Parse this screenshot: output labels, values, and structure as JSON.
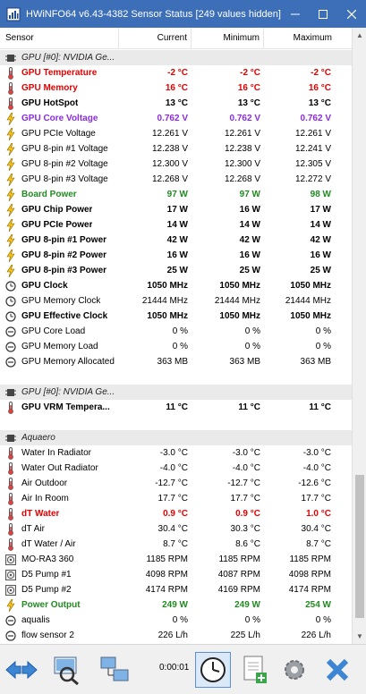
{
  "window": {
    "title": "HWiNFO64 v6.43-4382 Sensor Status [249 values hidden]"
  },
  "columns": {
    "sensor": "Sensor",
    "current": "Current",
    "minimum": "Minimum",
    "maximum": "Maximum"
  },
  "groups": [
    {
      "title": "GPU [#0]: NVIDIA Ge...",
      "rows": [
        {
          "name": "GPU Temperature",
          "cur": "-2 °C",
          "min": "-2 °C",
          "max": "-2 °C",
          "icon": "thermometer-icon",
          "style": "red"
        },
        {
          "name": "GPU Memory",
          "cur": "16 °C",
          "min": "16 °C",
          "max": "16 °C",
          "icon": "thermometer-icon",
          "style": "red"
        },
        {
          "name": "GPU HotSpot",
          "cur": "13 °C",
          "min": "13 °C",
          "max": "13 °C",
          "icon": "thermometer-icon",
          "style": "bold"
        },
        {
          "name": "GPU Core Voltage",
          "cur": "0.762 V",
          "min": "0.762 V",
          "max": "0.762 V",
          "icon": "lightning-icon",
          "style": "purple"
        },
        {
          "name": "GPU PCIe Voltage",
          "cur": "12.261 V",
          "min": "12.261 V",
          "max": "12.261 V",
          "icon": "lightning-icon",
          "style": ""
        },
        {
          "name": "GPU 8-pin #1 Voltage",
          "cur": "12.238 V",
          "min": "12.238 V",
          "max": "12.241 V",
          "icon": "lightning-icon",
          "style": ""
        },
        {
          "name": "GPU 8-pin #2 Voltage",
          "cur": "12.300 V",
          "min": "12.300 V",
          "max": "12.305 V",
          "icon": "lightning-icon",
          "style": ""
        },
        {
          "name": "GPU 8-pin #3 Voltage",
          "cur": "12.268 V",
          "min": "12.268 V",
          "max": "12.272 V",
          "icon": "lightning-icon",
          "style": ""
        },
        {
          "name": "Board Power",
          "cur": "97 W",
          "min": "97 W",
          "max": "98 W",
          "icon": "lightning-icon",
          "style": "green"
        },
        {
          "name": "GPU Chip Power",
          "cur": "17 W",
          "min": "16 W",
          "max": "17 W",
          "icon": "lightning-icon",
          "style": "bold"
        },
        {
          "name": "GPU PCIe Power",
          "cur": "14 W",
          "min": "14 W",
          "max": "14 W",
          "icon": "lightning-icon",
          "style": "bold"
        },
        {
          "name": "GPU 8-pin #1 Power",
          "cur": "42 W",
          "min": "42 W",
          "max": "42 W",
          "icon": "lightning-icon",
          "style": "bold"
        },
        {
          "name": "GPU 8-pin #2 Power",
          "cur": "16 W",
          "min": "16 W",
          "max": "16 W",
          "icon": "lightning-icon",
          "style": "bold"
        },
        {
          "name": "GPU 8-pin #3 Power",
          "cur": "25 W",
          "min": "25 W",
          "max": "25 W",
          "icon": "lightning-icon",
          "style": "bold"
        },
        {
          "name": "GPU Clock",
          "cur": "1050 MHz",
          "min": "1050 MHz",
          "max": "1050 MHz",
          "icon": "clock-icon",
          "style": "bold"
        },
        {
          "name": "GPU Memory Clock",
          "cur": "21444 MHz",
          "min": "21444 MHz",
          "max": "21444 MHz",
          "icon": "clock-icon",
          "style": ""
        },
        {
          "name": "GPU Effective Clock",
          "cur": "1050 MHz",
          "min": "1050 MHz",
          "max": "1050 MHz",
          "icon": "clock-icon",
          "style": "bold"
        },
        {
          "name": "GPU Core Load",
          "cur": "0 %",
          "min": "0 %",
          "max": "0 %",
          "icon": "gauge-icon",
          "style": ""
        },
        {
          "name": "GPU Memory Load",
          "cur": "0 %",
          "min": "0 %",
          "max": "0 %",
          "icon": "gauge-icon",
          "style": ""
        },
        {
          "name": "GPU Memory Allocated",
          "cur": "363 MB",
          "min": "363 MB",
          "max": "363 MB",
          "icon": "gauge-icon",
          "style": ""
        }
      ]
    },
    {
      "title": "GPU [#0]: NVIDIA Ge...",
      "rows": [
        {
          "name": "GPU VRM Tempera...",
          "cur": "11 °C",
          "min": "11 °C",
          "max": "11 °C",
          "icon": "thermometer-icon",
          "style": "bold"
        }
      ]
    },
    {
      "title": "Aquaero",
      "rows": [
        {
          "name": "Water In Radiator",
          "cur": "-3.0 °C",
          "min": "-3.0 °C",
          "max": "-3.0 °C",
          "icon": "thermometer-icon",
          "style": ""
        },
        {
          "name": "Water Out Radiator",
          "cur": "-4.0 °C",
          "min": "-4.0 °C",
          "max": "-4.0 °C",
          "icon": "thermometer-icon",
          "style": ""
        },
        {
          "name": "Air Outdoor",
          "cur": "-12.7 °C",
          "min": "-12.7 °C",
          "max": "-12.6 °C",
          "icon": "thermometer-icon",
          "style": ""
        },
        {
          "name": "Air In Room",
          "cur": "17.7 °C",
          "min": "17.7 °C",
          "max": "17.7 °C",
          "icon": "thermometer-icon",
          "style": ""
        },
        {
          "name": "dT Water",
          "cur": "0.9 °C",
          "min": "0.9 °C",
          "max": "1.0 °C",
          "icon": "thermometer-icon",
          "style": "red"
        },
        {
          "name": "dT Air",
          "cur": "30.4 °C",
          "min": "30.3 °C",
          "max": "30.4 °C",
          "icon": "thermometer-icon",
          "style": ""
        },
        {
          "name": "dT Water / Air",
          "cur": "8.7 °C",
          "min": "8.6 °C",
          "max": "8.7 °C",
          "icon": "thermometer-icon",
          "style": ""
        },
        {
          "name": "MO-RA3 360",
          "cur": "1185 RPM",
          "min": "1185 RPM",
          "max": "1185 RPM",
          "icon": "fan-icon",
          "style": ""
        },
        {
          "name": "D5 Pump #1",
          "cur": "4098 RPM",
          "min": "4087 RPM",
          "max": "4098 RPM",
          "icon": "fan-icon",
          "style": ""
        },
        {
          "name": "D5 Pump #2",
          "cur": "4174 RPM",
          "min": "4169 RPM",
          "max": "4174 RPM",
          "icon": "fan-icon",
          "style": ""
        },
        {
          "name": "Power Output",
          "cur": "249 W",
          "min": "249 W",
          "max": "254 W",
          "icon": "lightning-icon",
          "style": "green"
        },
        {
          "name": "aqualis",
          "cur": "0 %",
          "min": "0 %",
          "max": "0 %",
          "icon": "gauge-icon",
          "style": ""
        },
        {
          "name": "flow sensor 2",
          "cur": "226 L/h",
          "min": "225 L/h",
          "max": "226 L/h",
          "icon": "gauge-icon",
          "style": ""
        }
      ]
    }
  ],
  "toolbar": {
    "elapsed_time": "0:00:01",
    "buttons": [
      "navigate-arrows-icon",
      "network-view-icon",
      "network-icon",
      "clock-icon",
      "log-add-icon",
      "settings-gear-icon",
      "close-x-icon"
    ]
  },
  "colors": {
    "titlebar": "#3c6fb8",
    "red": "#e30000",
    "purple": "#8a2be2",
    "green": "#218a21"
  }
}
